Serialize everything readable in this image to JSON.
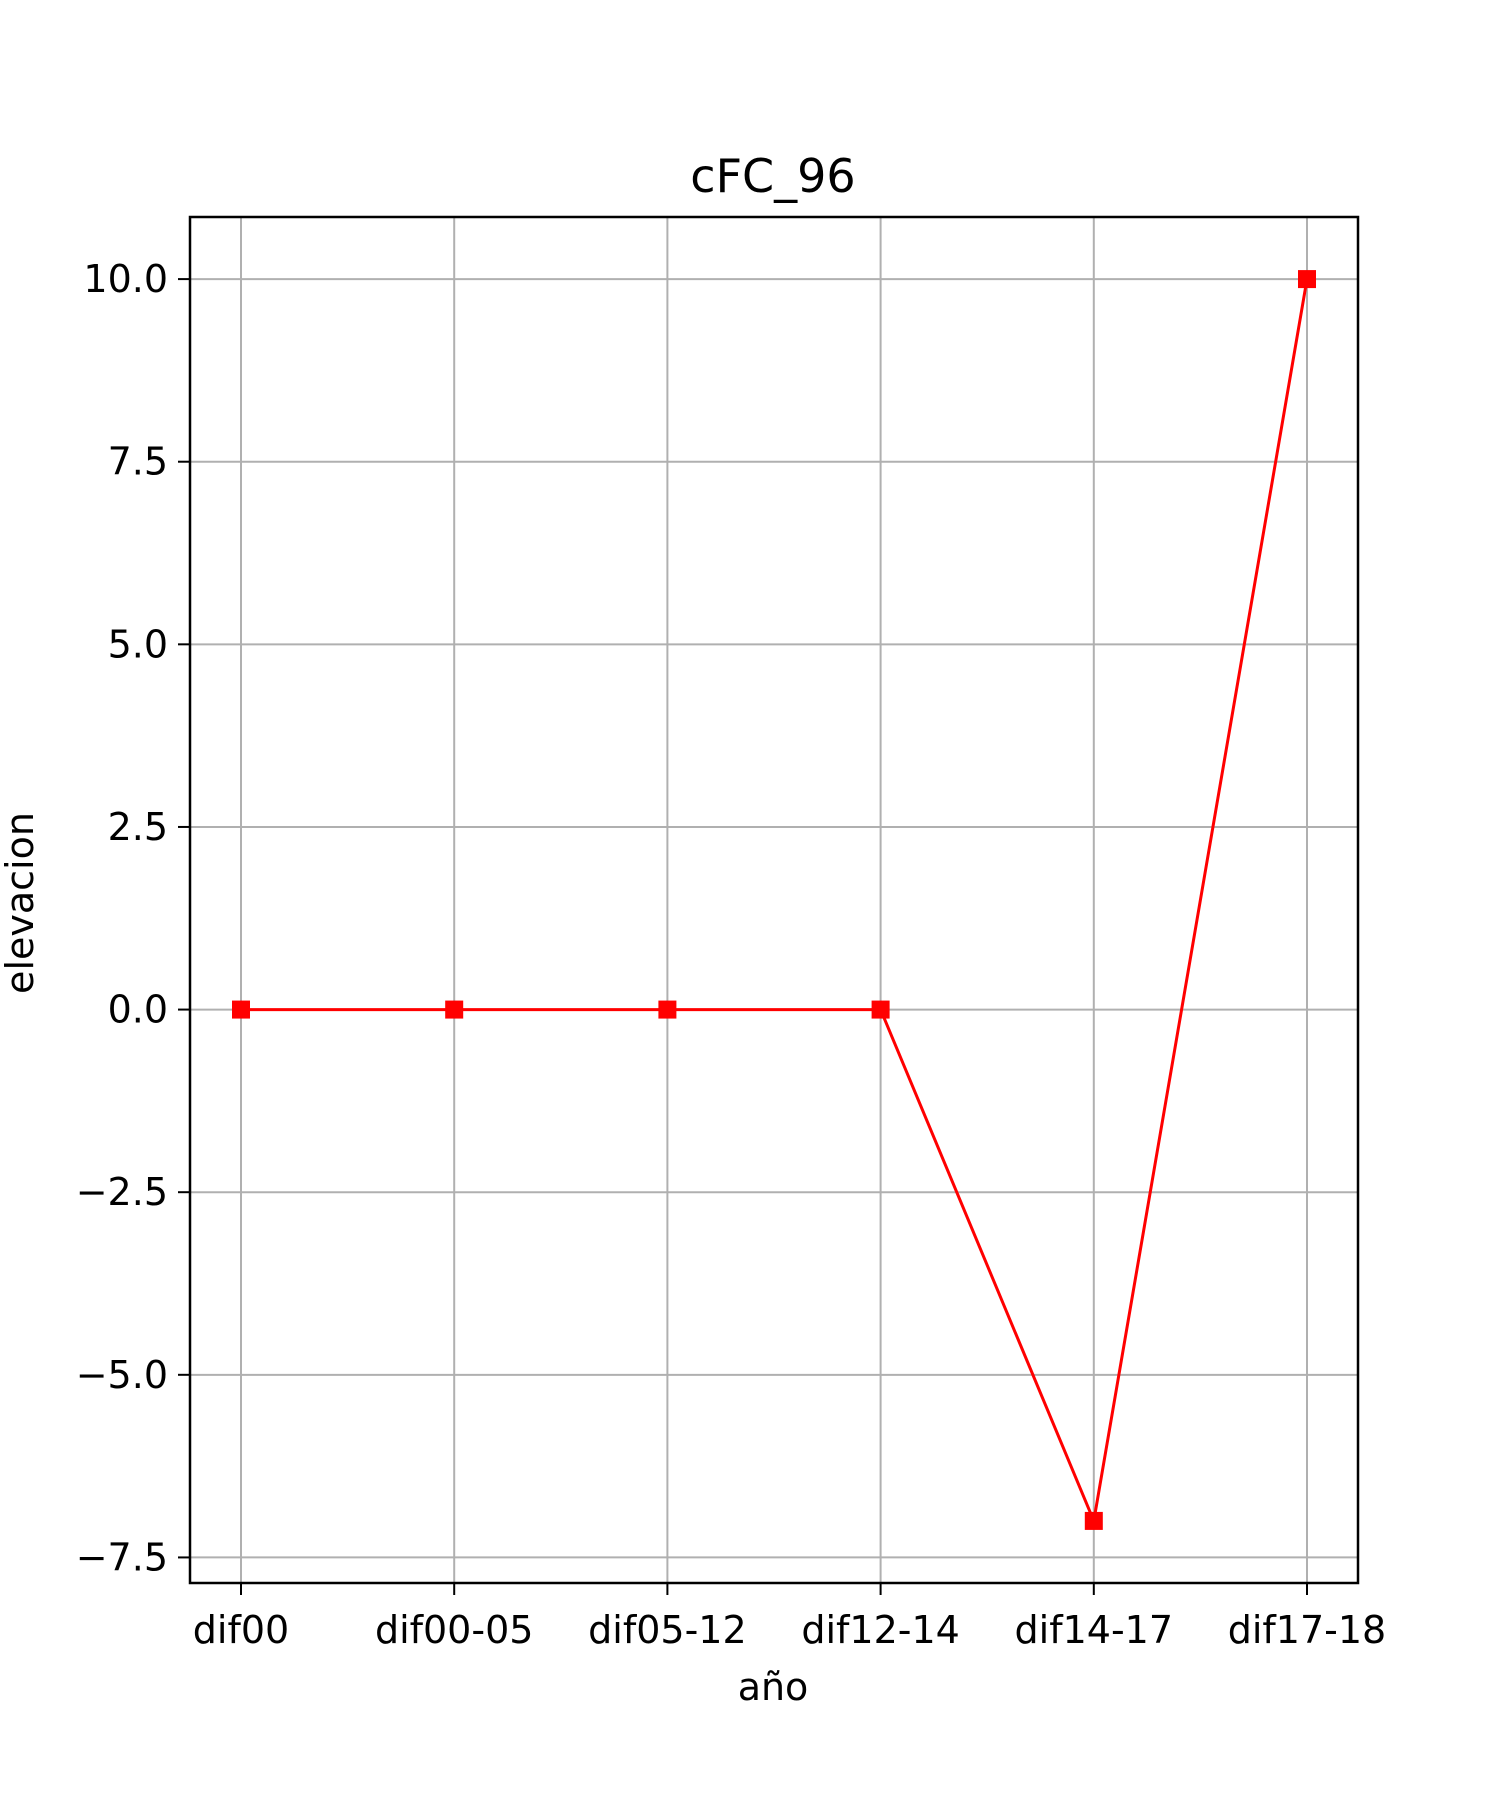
{
  "chart_data": {
    "type": "line",
    "title": "cFC_96",
    "xlabel": "año",
    "ylabel": "elevacion",
    "categories": [
      "dif00",
      "dif00-05",
      "dif05-12",
      "dif12-14",
      "dif14-17",
      "dif17-18"
    ],
    "series": [
      {
        "values": [
          0,
          0,
          0,
          0,
          -7,
          10
        ],
        "color": "#ff0000",
        "marker": "square"
      }
    ],
    "yticks": [
      -7.5,
      -5.0,
      -2.5,
      0.0,
      2.5,
      5.0,
      7.5,
      10.0
    ],
    "ytick_labels": [
      "−7.5",
      "−5.0",
      "−2.5",
      "0.0",
      "2.5",
      "5.0",
      "7.5",
      "10.0"
    ],
    "ylim": [
      -7.85,
      10.85
    ],
    "grid": true,
    "grid_color": "#b0b0b0",
    "legend": false
  }
}
